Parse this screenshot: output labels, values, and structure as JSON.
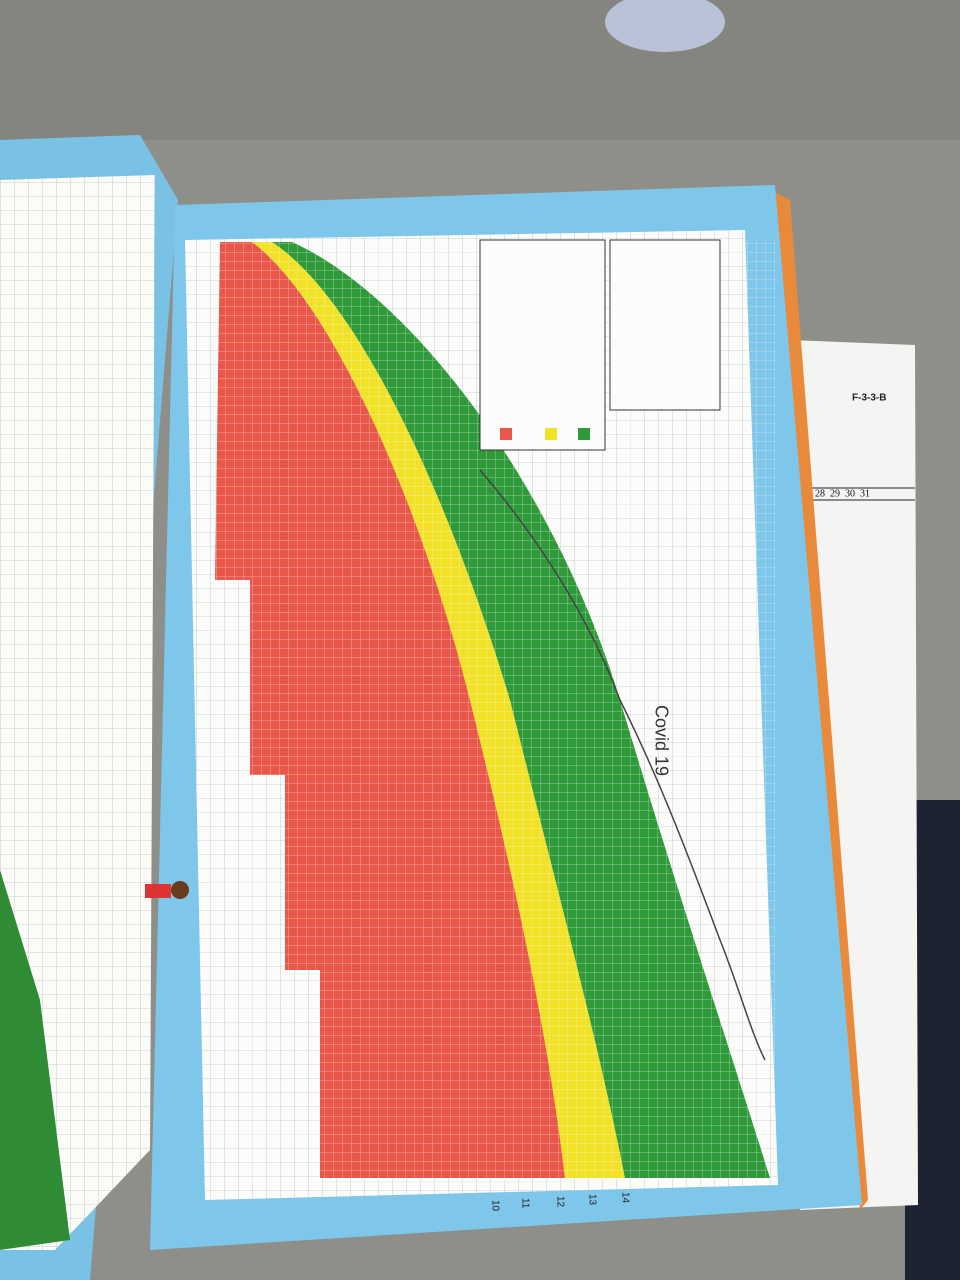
{
  "page": {
    "form_code": "F-3-3-B",
    "calendar_days": [
      "28",
      "29",
      "30",
      "31"
    ],
    "handwritten_note": "Covid 19",
    "weight_axis_labels": [
      "10",
      "11",
      "12",
      "13",
      "14"
    ]
  }
}
